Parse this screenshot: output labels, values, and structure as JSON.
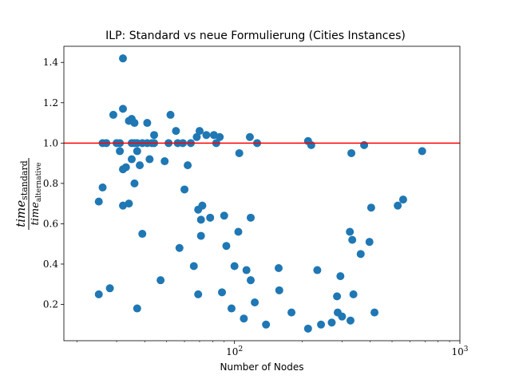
{
  "chart_data": {
    "type": "scatter",
    "title": "ILP: Standard vs neue Formulierung (Cities Instances)",
    "xlabel": "Number of Nodes",
    "ylabel": {
      "numerator": "time",
      "numerator_sub": "standard",
      "denominator": "time",
      "denominator_sub": "alternative"
    },
    "xscale": "log",
    "xlim": [
      17.5,
      1000
    ],
    "ylim": [
      0.02,
      1.48
    ],
    "x_ticks": [
      {
        "value": 100,
        "base": "10",
        "exp": "2"
      },
      {
        "value": 1000,
        "base": "10",
        "exp": "3"
      }
    ],
    "y_ticks": [
      0.2,
      0.4,
      0.6,
      0.8,
      1.0,
      1.2,
      1.4
    ],
    "y_tick_labels": [
      "0.2",
      "0.4",
      "0.6",
      "0.8",
      "1.0",
      "1.2",
      "1.4"
    ],
    "marker_color": "#1f77b4",
    "reference_line": {
      "y": 1.0,
      "color": "#ff0000"
    },
    "points": [
      [
        25,
        0.25
      ],
      [
        25,
        0.71
      ],
      [
        26,
        1.0
      ],
      [
        26,
        0.78
      ],
      [
        27,
        1.0
      ],
      [
        28,
        0.28
      ],
      [
        29,
        1.14
      ],
      [
        30,
        1.0
      ],
      [
        31,
        0.96
      ],
      [
        31,
        1.0
      ],
      [
        32,
        1.42
      ],
      [
        32,
        1.17
      ],
      [
        32,
        0.87
      ],
      [
        32,
        0.69
      ],
      [
        33,
        0.88
      ],
      [
        34,
        1.11
      ],
      [
        34,
        0.7
      ],
      [
        35,
        1.0
      ],
      [
        35,
        1.12
      ],
      [
        35,
        0.92
      ],
      [
        36,
        1.1
      ],
      [
        36,
        1.0
      ],
      [
        36,
        0.8
      ],
      [
        37,
        0.96
      ],
      [
        37,
        1.0
      ],
      [
        37,
        0.18
      ],
      [
        38,
        0.89
      ],
      [
        39,
        1.0
      ],
      [
        39,
        0.55
      ],
      [
        41,
        1.1
      ],
      [
        41,
        1.0
      ],
      [
        42,
        0.92
      ],
      [
        43,
        1.0
      ],
      [
        44,
        1.04
      ],
      [
        44,
        1.0
      ],
      [
        47,
        0.32
      ],
      [
        49,
        0.91
      ],
      [
        51,
        1.0
      ],
      [
        52,
        1.14
      ],
      [
        55,
        1.06
      ],
      [
        56,
        1.0
      ],
      [
        57,
        0.48
      ],
      [
        59,
        1.0
      ],
      [
        60,
        0.77
      ],
      [
        62,
        0.89
      ],
      [
        64,
        1.0
      ],
      [
        66,
        0.39
      ],
      [
        68,
        1.03
      ],
      [
        69,
        0.67
      ],
      [
        69,
        0.25
      ],
      [
        70,
        1.06
      ],
      [
        71,
        0.62
      ],
      [
        71,
        0.54
      ],
      [
        72,
        0.69
      ],
      [
        75,
        1.04
      ],
      [
        78,
        0.63
      ],
      [
        81,
        1.04
      ],
      [
        83,
        1.0
      ],
      [
        86,
        1.03
      ],
      [
        88,
        0.26
      ],
      [
        90,
        0.64
      ],
      [
        92,
        0.49
      ],
      [
        97,
        0.18
      ],
      [
        100,
        0.39
      ],
      [
        104,
        0.56
      ],
      [
        105,
        0.95
      ],
      [
        110,
        0.13
      ],
      [
        113,
        0.37
      ],
      [
        117,
        1.03
      ],
      [
        118,
        0.63
      ],
      [
        118,
        0.32
      ],
      [
        123,
        0.21
      ],
      [
        126,
        1.0
      ],
      [
        138,
        0.1
      ],
      [
        157,
        0.38
      ],
      [
        158,
        0.27
      ],
      [
        179,
        0.16
      ],
      [
        212,
        0.08
      ],
      [
        212,
        1.01
      ],
      [
        219,
        0.99
      ],
      [
        233,
        0.37
      ],
      [
        242,
        0.1
      ],
      [
        270,
        0.11
      ],
      [
        285,
        0.24
      ],
      [
        287,
        0.16
      ],
      [
        295,
        0.34
      ],
      [
        300,
        0.14
      ],
      [
        325,
        0.56
      ],
      [
        327,
        0.12
      ],
      [
        330,
        0.95
      ],
      [
        333,
        0.52
      ],
      [
        337,
        0.25
      ],
      [
        363,
        0.45
      ],
      [
        376,
        0.99
      ],
      [
        397,
        0.51
      ],
      [
        404,
        0.68
      ],
      [
        418,
        0.16
      ],
      [
        530,
        0.69
      ],
      [
        560,
        0.72
      ],
      [
        680,
        0.96
      ]
    ]
  }
}
